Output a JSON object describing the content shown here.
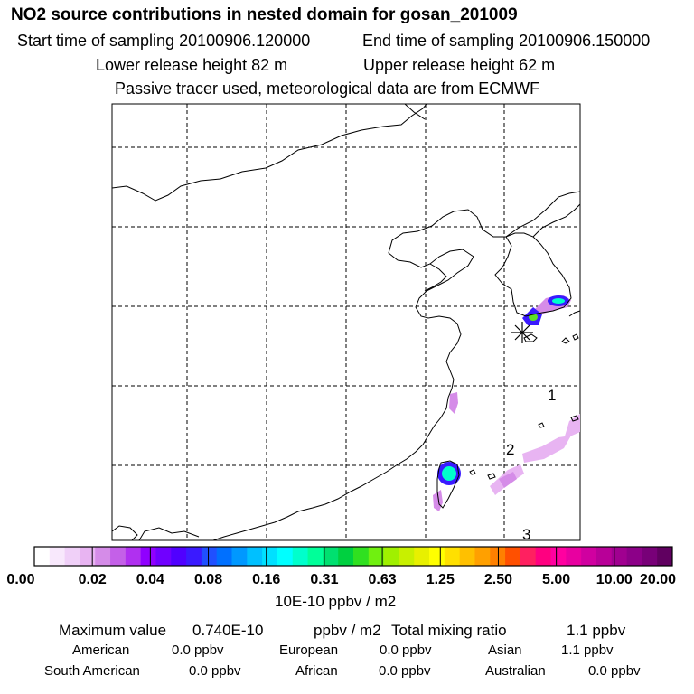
{
  "header": {
    "title": "NO2 source contributions in nested domain for gosan_201009",
    "start_label": "Start time of sampling 20100906.120000",
    "end_label": "End time of sampling 20100906.150000",
    "lower_release": "Lower release height   82 m",
    "upper_release": "Upper release height   62 m",
    "tracer_note": "Passive tracer used, meteorological data are from ECMWF"
  },
  "map": {
    "track_labels": [
      "1",
      "2",
      "3"
    ],
    "receptor_marker": "gosan-receptor",
    "plume_colors": [
      "#b844e8",
      "#3a1aff",
      "#00ffcc",
      "#5de028",
      "#d58ce8",
      "#e8b4f2"
    ]
  },
  "chart_data": {
    "type": "heatmap",
    "title": "NO2 source contributions in nested domain for gosan_201009",
    "colorbar": {
      "ticks": [
        "0.00",
        "0.02",
        "0.04",
        "0.08",
        "0.16",
        "0.31",
        "0.63",
        "1.25",
        "2.50",
        "5.00",
        "10.00",
        "20.00"
      ],
      "unit": "10E-10 ppbv / m2",
      "colors": [
        "#ffffff",
        "#f8e8fc",
        "#f0d0f8",
        "#e8b4f2",
        "#d58ce8",
        "#c460e8",
        "#b030f0",
        "#9000ff",
        "#7000ff",
        "#5000ff",
        "#3a1aff",
        "#2050ff",
        "#0070ff",
        "#0098ff",
        "#00c0ff",
        "#00e0ff",
        "#00ffff",
        "#00ffcc",
        "#00ff99",
        "#00e070",
        "#00d040",
        "#30e020",
        "#70f010",
        "#a0f000",
        "#c8f000",
        "#e8f000",
        "#ffff00",
        "#ffe000",
        "#ffc000",
        "#ffa000",
        "#ff8000",
        "#ff5000",
        "#ff2060",
        "#ff0080",
        "#ff00a0",
        "#e800a0",
        "#d000a0",
        "#b80098",
        "#a00090",
        "#8c0088",
        "#780078",
        "#600060"
      ]
    },
    "maximum_value": "0.740E-10",
    "total_mixing_ratio_ppbv": 1.1
  },
  "summary": {
    "max_label": "Maximum value",
    "max_value": "0.740E-10",
    "max_unit": "ppbv / m2",
    "total_label": "Total mixing ratio",
    "total_value": "1.1 ppbv",
    "sources": [
      {
        "name": "American",
        "value": "0.0 ppbv"
      },
      {
        "name": "European",
        "value": "0.0 ppbv"
      },
      {
        "name": "Asian",
        "value": "1.1 ppbv"
      },
      {
        "name": "South American",
        "value": "0.0 ppbv"
      },
      {
        "name": "African",
        "value": "0.0 ppbv"
      },
      {
        "name": "Australian",
        "value": "0.0 ppbv"
      }
    ]
  }
}
